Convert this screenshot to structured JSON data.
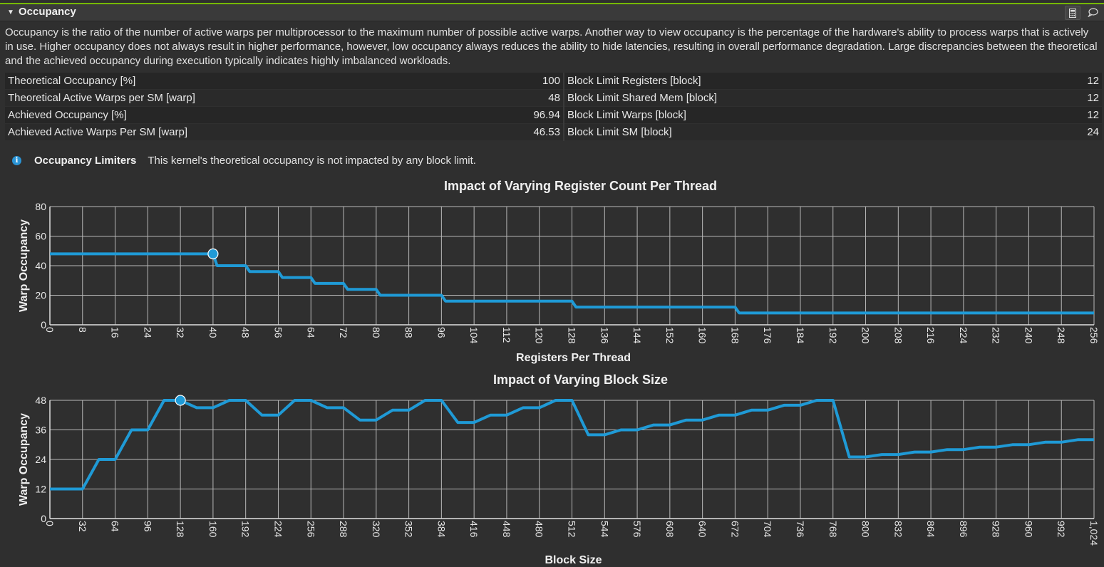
{
  "section": {
    "title": "Occupancy",
    "collapse_icon": "caret-down-icon",
    "calculator_icon": "calculator-icon",
    "comment_icon": "comment-icon",
    "accent_color": "#76b900"
  },
  "description": "Occupancy is the ratio of the number of active warps per multiprocessor to the maximum number of possible active warps. Another way to view occupancy is the percentage of the hardware's ability to process warps that is actively in use. Higher occupancy does not always result in higher performance, however, low occupancy always reduces the ability to hide latencies, resulting in overall performance degradation. Large discrepancies between the theoretical and the achieved occupancy during execution typically indicates highly imbalanced workloads.",
  "metrics": [
    {
      "left_label": "Theoretical Occupancy [%]",
      "left_value": "100",
      "right_label": "Block Limit Registers [block]",
      "right_value": "12"
    },
    {
      "left_label": "Theoretical Active Warps per SM [warp]",
      "left_value": "48",
      "right_label": "Block Limit Shared Mem [block]",
      "right_value": "12"
    },
    {
      "left_label": "Achieved Occupancy [%]",
      "left_value": "96.94",
      "right_label": "Block Limit Warps [block]",
      "right_value": "12"
    },
    {
      "left_label": "Achieved Active Warps Per SM [warp]",
      "left_value": "46.53",
      "right_label": "Block Limit SM [block]",
      "right_value": "24"
    }
  ],
  "limiters": {
    "icon": "info-icon",
    "title": "Occupancy Limiters",
    "text": "This kernel's theoretical occupancy is not impacted by any block limit."
  },
  "chart_data": [
    {
      "type": "line",
      "title": "Impact of Varying Register Count Per Thread",
      "xlabel": "Registers Per Thread",
      "ylabel": "Warp Occupancy",
      "xlim": [
        0,
        256
      ],
      "ylim": [
        0,
        80
      ],
      "xticks": [
        0,
        8,
        16,
        24,
        32,
        40,
        48,
        56,
        64,
        72,
        80,
        88,
        96,
        104,
        112,
        120,
        128,
        136,
        144,
        152,
        160,
        168,
        176,
        184,
        192,
        200,
        208,
        216,
        224,
        232,
        240,
        248,
        256
      ],
      "xtick_labels": [
        "0",
        "8",
        "16",
        "24",
        "32",
        "40",
        "48",
        "56",
        "64",
        "72",
        "80",
        "88",
        "96",
        "104",
        "112",
        "120",
        "128",
        "136",
        "144",
        "152",
        "160",
        "168",
        "176",
        "184",
        "192",
        "200",
        "208",
        "216",
        "224",
        "232",
        "240",
        "248",
        "256"
      ],
      "yticks": [
        0,
        20,
        40,
        60,
        80
      ],
      "grid": true,
      "line_color": "#1f9ad6",
      "marker": {
        "x": 40,
        "y": 48
      },
      "points": [
        [
          0,
          48
        ],
        [
          40,
          48
        ],
        [
          41,
          40
        ],
        [
          48,
          40
        ],
        [
          49,
          36
        ],
        [
          56,
          36
        ],
        [
          57,
          32
        ],
        [
          64,
          32
        ],
        [
          65,
          28
        ],
        [
          72,
          28
        ],
        [
          73,
          24
        ],
        [
          80,
          24
        ],
        [
          81,
          20
        ],
        [
          96,
          20
        ],
        [
          97,
          16
        ],
        [
          128,
          16
        ],
        [
          129,
          12
        ],
        [
          168,
          12
        ],
        [
          169,
          8
        ],
        [
          256,
          8
        ]
      ]
    },
    {
      "type": "line",
      "title": "Impact of Varying Block Size",
      "xlabel": "Block Size",
      "ylabel": "Warp Occupancy",
      "xlim": [
        0,
        1024
      ],
      "ylim": [
        0,
        48
      ],
      "xticks": [
        0,
        32,
        64,
        96,
        128,
        160,
        192,
        224,
        256,
        288,
        320,
        352,
        384,
        416,
        448,
        480,
        512,
        544,
        576,
        608,
        640,
        672,
        704,
        736,
        768,
        800,
        832,
        864,
        896,
        928,
        960,
        992,
        1024
      ],
      "xtick_labels": [
        "0",
        "32",
        "64",
        "96",
        "128",
        "160",
        "192",
        "224",
        "256",
        "288",
        "320",
        "352",
        "384",
        "416",
        "448",
        "480",
        "512",
        "544",
        "576",
        "608",
        "640",
        "672",
        "704",
        "736",
        "768",
        "800",
        "832",
        "864",
        "896",
        "928",
        "960",
        "992",
        "1,024"
      ],
      "yticks": [
        0,
        12,
        24,
        36,
        48
      ],
      "grid": true,
      "line_color": "#1f9ad6",
      "marker": {
        "x": 128,
        "y": 48
      },
      "points": [
        [
          0,
          12
        ],
        [
          32,
          12
        ],
        [
          48,
          24
        ],
        [
          64,
          24
        ],
        [
          80,
          36
        ],
        [
          96,
          36
        ],
        [
          112,
          48
        ],
        [
          128,
          48
        ],
        [
          144,
          45
        ],
        [
          160,
          45
        ],
        [
          176,
          48
        ],
        [
          192,
          48
        ],
        [
          208,
          42
        ],
        [
          224,
          42
        ],
        [
          240,
          48
        ],
        [
          256,
          48
        ],
        [
          272,
          45
        ],
        [
          288,
          45
        ],
        [
          304,
          40
        ],
        [
          320,
          40
        ],
        [
          336,
          44
        ],
        [
          352,
          44
        ],
        [
          368,
          48
        ],
        [
          384,
          48
        ],
        [
          400,
          39
        ],
        [
          416,
          39
        ],
        [
          432,
          42
        ],
        [
          448,
          42
        ],
        [
          464,
          45
        ],
        [
          480,
          45
        ],
        [
          496,
          48
        ],
        [
          512,
          48
        ],
        [
          528,
          34
        ],
        [
          544,
          34
        ],
        [
          560,
          36
        ],
        [
          576,
          36
        ],
        [
          592,
          38
        ],
        [
          608,
          38
        ],
        [
          624,
          40
        ],
        [
          640,
          40
        ],
        [
          656,
          42
        ],
        [
          672,
          42
        ],
        [
          688,
          44
        ],
        [
          704,
          44
        ],
        [
          720,
          46
        ],
        [
          736,
          46
        ],
        [
          752,
          48
        ],
        [
          768,
          48
        ],
        [
          784,
          25
        ],
        [
          800,
          25
        ],
        [
          816,
          26
        ],
        [
          832,
          26
        ],
        [
          848,
          27
        ],
        [
          864,
          27
        ],
        [
          880,
          28
        ],
        [
          896,
          28
        ],
        [
          912,
          29
        ],
        [
          928,
          29
        ],
        [
          944,
          30
        ],
        [
          960,
          30
        ],
        [
          976,
          31
        ],
        [
          992,
          31
        ],
        [
          1008,
          32
        ],
        [
          1024,
          32
        ]
      ]
    }
  ]
}
